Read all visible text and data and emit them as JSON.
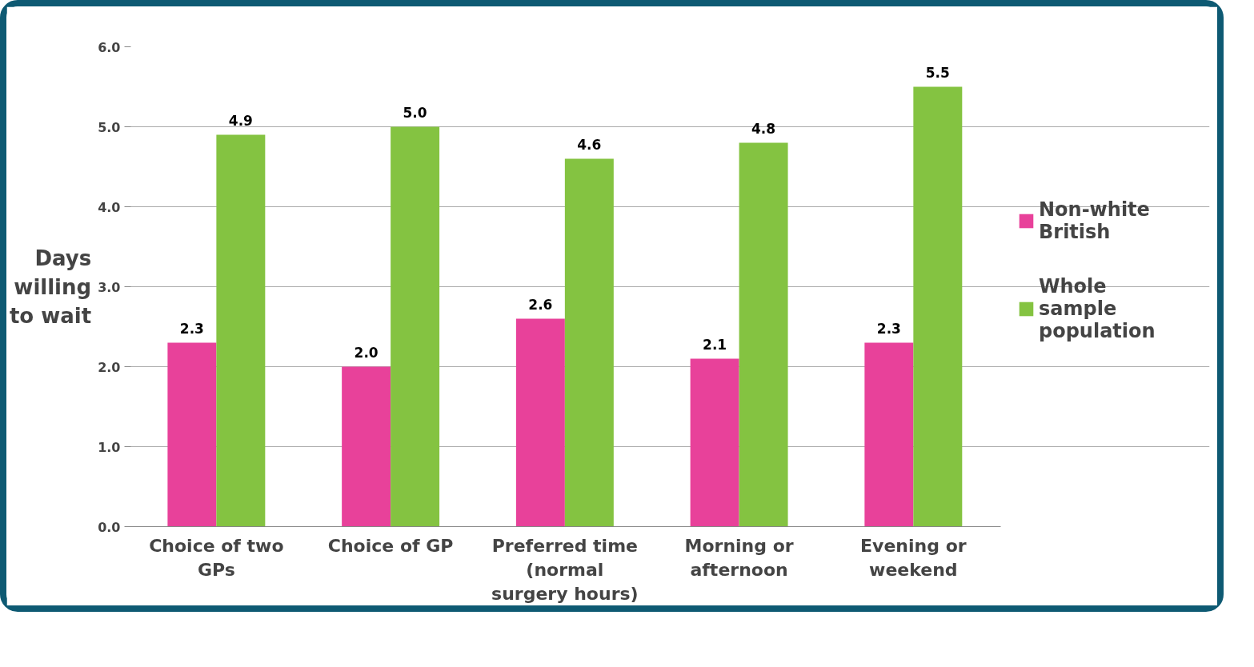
{
  "chart_data": {
    "type": "bar",
    "ylabel": "Days willing to wait",
    "categories": [
      "Choice of two GPs",
      "Choice of GP",
      "Preferred time (normal surgery hours)",
      "Morning or afternoon",
      "Evening or weekend"
    ],
    "series": [
      {
        "name": "Non-white British",
        "color": "#e8419a",
        "values": [
          2.3,
          2.0,
          2.6,
          2.1,
          2.3
        ],
        "value_labels": [
          "2.3",
          "2.0",
          "2.6",
          "2.1",
          "2.3"
        ]
      },
      {
        "name": "Whole sample population",
        "color": "#84c341",
        "values": [
          4.9,
          5.0,
          4.6,
          4.8,
          5.5
        ],
        "value_labels": [
          "4.9",
          "5.0",
          "4.6",
          "4.8",
          "5.5"
        ]
      }
    ],
    "ylim": [
      0,
      6
    ],
    "yticks": [
      {
        "value": 0,
        "label": "0.0"
      },
      {
        "value": 1,
        "label": "1.0"
      },
      {
        "value": 2,
        "label": "2.0"
      },
      {
        "value": 3,
        "label": "3.0"
      },
      {
        "value": 4,
        "label": "4.0"
      },
      {
        "value": 5,
        "label": "5.0"
      },
      {
        "value": 6,
        "label": "6.0"
      }
    ],
    "grid": "y",
    "legend": "right"
  }
}
